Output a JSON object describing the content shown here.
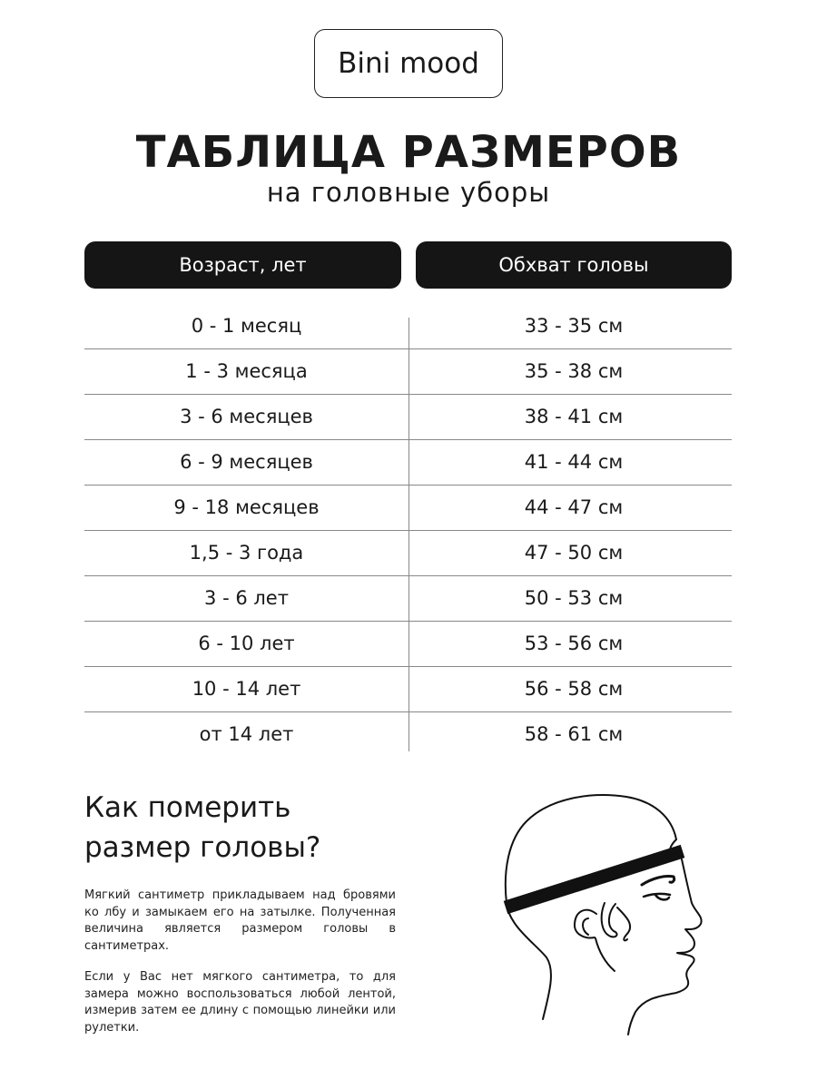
{
  "brand": "Bini mood",
  "title": "ТАБЛИЦА РАЗМЕРОВ",
  "subtitle": "на головные уборы",
  "headers": [
    "Возраст, лет",
    "Обхват головы"
  ],
  "rows": [
    [
      "0 - 1 месяц",
      "33 - 35 см"
    ],
    [
      "1 - 3 месяца",
      "35 - 38 см"
    ],
    [
      "3 - 6 месяцев",
      "38 - 41 см"
    ],
    [
      "6 - 9 месяцев",
      "41 - 44 см"
    ],
    [
      "9 - 18 месяцев",
      "44 - 47 см"
    ],
    [
      "1,5 - 3 года",
      "47 - 50 см"
    ],
    [
      "3 - 6 лет",
      "50 - 53 см"
    ],
    [
      "6 - 10 лет",
      "53 - 56 см"
    ],
    [
      "10 - 14 лет",
      "56 - 58 см"
    ],
    [
      "от 14 лет",
      "58 - 61 см"
    ]
  ],
  "howto_title": "Как померить размер головы?",
  "paragraphs": [
    "Мягкий сантиметр прикладываем над бровями ко лбу и замыкаем его на затылке. Полученная величина является размером головы в сантиметрах.",
    "Если у Вас нет мягкого сантиметра, то для замера можно воспользоваться любой лентой, измерив затем ее длину с помощью линейки или рулетки."
  ],
  "illustration": "head-measurement-icon"
}
